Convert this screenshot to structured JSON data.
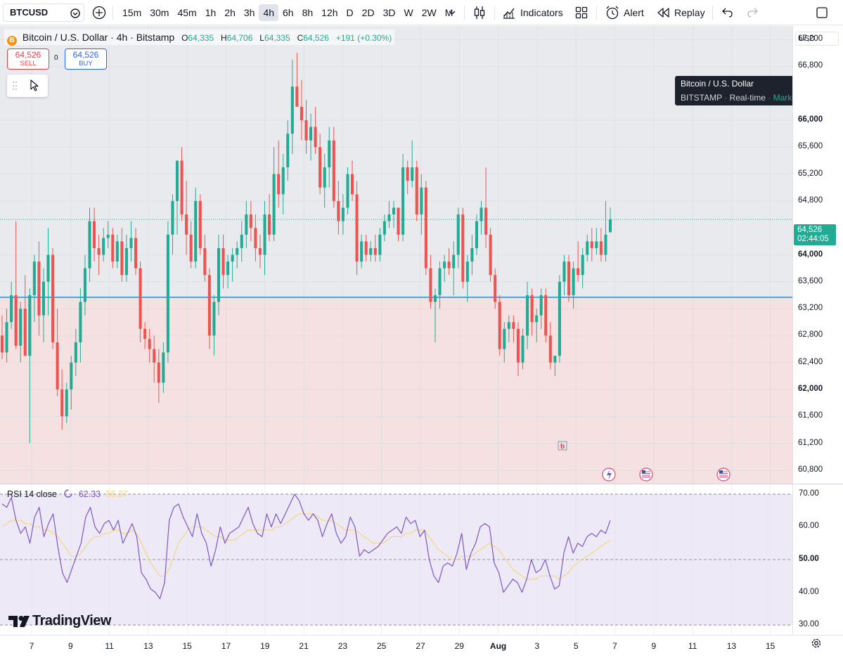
{
  "toolbar": {
    "symbol": "BTCUSD",
    "intervals": [
      "15m",
      "30m",
      "45m",
      "1h",
      "2h",
      "3h",
      "4h",
      "6h",
      "8h",
      "12h",
      "D",
      "2D",
      "3D",
      "W",
      "2W",
      "M"
    ],
    "active_interval": "4h",
    "indicators_label": "Indicators",
    "alert_label": "Alert",
    "replay_label": "Replay",
    "icons": [
      "add-symbol-icon",
      "interval-dropdown-icon",
      "chart-type-icon",
      "indicators-icon",
      "layouts-icon",
      "alert-icon",
      "replay-icon",
      "undo-icon",
      "redo-icon"
    ]
  },
  "legend": {
    "title": "Bitcoin / U.S. Dollar · 4h · Bitstamp",
    "coin_glyph": "B",
    "o_key": "O",
    "o_val": "64,335",
    "h_key": "H",
    "h_val": "64,706",
    "l_key": "L",
    "l_val": "64,335",
    "c_key": "C",
    "c_val": "64,526",
    "change": "+191 (+0.30%)"
  },
  "trade": {
    "sell_price": "64,526",
    "sell_label": "SELL",
    "spread": "0",
    "buy_price": "64,526",
    "buy_label": "BUY"
  },
  "tooltip": {
    "title": "Bitcoin / U.S. Dollar",
    "exchange": "BITSTAMP",
    "mode": "Real-time",
    "status": "Market open"
  },
  "price_scale": {
    "currency": "USD",
    "ticks": [
      "67,200",
      "66,800",
      "66,000",
      "65,600",
      "65,200",
      "64,800",
      "64,000",
      "63,600",
      "63,200",
      "62,800",
      "62,400",
      "62,000",
      "61,600",
      "61,200",
      "60,800"
    ],
    "bold_ticks": [
      "66,000",
      "64,000",
      "62,000"
    ],
    "last_price": "64,526",
    "countdown": "02:44:05"
  },
  "rsi": {
    "label": "RSI 14 close",
    "value": "62.33",
    "ma_value": "56.37",
    "ticks": [
      "70.00",
      "60.00",
      "50.00",
      "40.00",
      "30.00"
    ],
    "bold_ticks": [
      "50.00"
    ]
  },
  "time_axis": {
    "labels": [
      "7",
      "9",
      "11",
      "13",
      "15",
      "17",
      "19",
      "21",
      "23",
      "25",
      "27",
      "29",
      "Aug",
      "3",
      "5",
      "7",
      "9",
      "11",
      "13",
      "15"
    ]
  },
  "markers": {
    "event_label": "b"
  },
  "watermark": "TradingView",
  "colors": {
    "up": "#22ab94",
    "down": "#ef5350",
    "rsi_line": "#7e57c2",
    "rsi_ma": "#f5d682",
    "hline": "#2a9bc4",
    "upper_zone": "#e9eaee",
    "lower_zone": "#f5e1e1",
    "rsi_band": "#ede9f7"
  },
  "chart_data": {
    "type": "candlestick",
    "timeframe": "4h",
    "ylim": [
      60600,
      67400
    ],
    "horizontal_line": 63370,
    "candles_ohlc": [
      [
        62800,
        63100,
        62450,
        62550
      ],
      [
        62550,
        63200,
        62400,
        63000
      ],
      [
        63000,
        63600,
        62900,
        63400
      ],
      [
        63400,
        64500,
        62600,
        62650
      ],
      [
        62650,
        63300,
        62400,
        63200
      ],
      [
        63200,
        63700,
        62700,
        62500
      ],
      [
        62500,
        63500,
        61200,
        63400
      ],
      [
        63400,
        64000,
        63000,
        63900
      ],
      [
        63900,
        64200,
        62800,
        63100
      ],
      [
        63100,
        63800,
        62700,
        63600
      ],
      [
        63600,
        64400,
        63100,
        64000
      ],
      [
        64000,
        64100,
        62600,
        62700
      ],
      [
        62700,
        63200,
        61900,
        62000
      ],
      [
        62000,
        62300,
        61400,
        61600
      ],
      [
        61600,
        62100,
        61500,
        62000
      ],
      [
        62000,
        62500,
        61700,
        62400
      ],
      [
        62400,
        62900,
        62200,
        62700
      ],
      [
        62700,
        63500,
        62400,
        63300
      ],
      [
        63300,
        64000,
        63100,
        63800
      ],
      [
        63800,
        64700,
        63600,
        64500
      ],
      [
        64500,
        64700,
        63900,
        64100
      ],
      [
        64100,
        64300,
        63700,
        64000
      ],
      [
        64000,
        64400,
        63900,
        64250
      ],
      [
        64250,
        64500,
        64100,
        64300
      ],
      [
        64300,
        64400,
        63800,
        63900
      ],
      [
        63900,
        64300,
        63800,
        64200
      ],
      [
        64200,
        64400,
        63600,
        63700
      ],
      [
        63700,
        64300,
        63600,
        64100
      ],
      [
        64100,
        64500,
        63900,
        64250
      ],
      [
        64250,
        64400,
        63700,
        63800
      ],
      [
        63800,
        63900,
        62700,
        62900
      ],
      [
        62900,
        63000,
        62600,
        62750
      ],
      [
        62750,
        62900,
        62400,
        62600
      ],
      [
        62600,
        62800,
        62100,
        62400
      ],
      [
        62400,
        62600,
        61800,
        62100
      ],
      [
        62100,
        62700,
        61950,
        62550
      ],
      [
        62550,
        64500,
        62400,
        64300
      ],
      [
        64300,
        64900,
        64000,
        64800
      ],
      [
        64800,
        65300,
        64300,
        65400
      ],
      [
        65400,
        65600,
        64500,
        64600
      ],
      [
        64600,
        65100,
        64000,
        64300
      ],
      [
        64300,
        64500,
        63800,
        63900
      ],
      [
        63900,
        65000,
        63800,
        64800
      ],
      [
        64800,
        64900,
        64000,
        64100
      ],
      [
        64100,
        64300,
        63600,
        63700
      ],
      [
        63700,
        63800,
        62600,
        62800
      ],
      [
        62800,
        63400,
        62500,
        63300
      ],
      [
        63300,
        64300,
        63100,
        64100
      ],
      [
        64100,
        64300,
        63500,
        63700
      ],
      [
        63700,
        64000,
        63500,
        63900
      ],
      [
        63900,
        64100,
        63600,
        64000
      ],
      [
        64000,
        64200,
        63800,
        64100
      ],
      [
        64100,
        64500,
        63900,
        64300
      ],
      [
        64300,
        64800,
        64100,
        64600
      ],
      [
        64600,
        64800,
        64200,
        64400
      ],
      [
        64400,
        64600,
        63900,
        64100
      ],
      [
        64100,
        64300,
        63800,
        64000
      ],
      [
        64000,
        64800,
        63700,
        64600
      ],
      [
        64600,
        64900,
        64200,
        64300
      ],
      [
        64300,
        65600,
        64200,
        65200
      ],
      [
        65200,
        65700,
        64700,
        64900
      ],
      [
        64900,
        65500,
        64600,
        65300
      ],
      [
        65300,
        66000,
        65100,
        65800
      ],
      [
        65800,
        66900,
        65500,
        66500
      ],
      [
        66500,
        67000,
        66200,
        66200
      ],
      [
        66200,
        66600,
        65700,
        66000
      ],
      [
        66000,
        66300,
        65500,
        65700
      ],
      [
        65700,
        66100,
        65400,
        65900
      ],
      [
        65900,
        66200,
        65500,
        65600
      ],
      [
        65600,
        65800,
        64900,
        65000
      ],
      [
        65000,
        65500,
        64700,
        65300
      ],
      [
        65300,
        65900,
        65000,
        65700
      ],
      [
        65700,
        65900,
        64700,
        64800
      ],
      [
        64800,
        65100,
        64300,
        64500
      ],
      [
        64500,
        64900,
        64300,
        64700
      ],
      [
        64700,
        65300,
        64600,
        65200
      ],
      [
        65200,
        65400,
        64800,
        64900
      ],
      [
        64900,
        65100,
        63700,
        63900
      ],
      [
        63900,
        64300,
        63800,
        64200
      ],
      [
        64200,
        64300,
        63900,
        64000
      ],
      [
        64000,
        64200,
        63900,
        64100
      ],
      [
        64100,
        64300,
        63900,
        64000
      ],
      [
        64000,
        64400,
        63900,
        64300
      ],
      [
        64300,
        64600,
        64200,
        64500
      ],
      [
        64500,
        64800,
        64400,
        64600
      ],
      [
        64600,
        64800,
        64400,
        64700
      ],
      [
        64700,
        64700,
        64200,
        64300
      ],
      [
        64300,
        65500,
        64200,
        65300
      ],
      [
        65300,
        65400,
        64900,
        65100
      ],
      [
        65100,
        65700,
        65000,
        65300
      ],
      [
        65300,
        65400,
        64500,
        64600
      ],
      [
        64600,
        65200,
        64300,
        65000
      ],
      [
        65000,
        65100,
        63700,
        63800
      ],
      [
        63800,
        64000,
        63200,
        63300
      ],
      [
        63300,
        63500,
        62700,
        63400
      ],
      [
        63400,
        63900,
        63200,
        63800
      ],
      [
        63800,
        64000,
        63600,
        63900
      ],
      [
        63900,
        64100,
        63700,
        63800
      ],
      [
        63800,
        64200,
        63400,
        64000
      ],
      [
        64000,
        64700,
        63800,
        64600
      ],
      [
        64600,
        64700,
        63500,
        63600
      ],
      [
        63600,
        64000,
        63300,
        63900
      ],
      [
        63900,
        64300,
        63700,
        64100
      ],
      [
        64100,
        64600,
        64000,
        64500
      ],
      [
        64500,
        64800,
        64300,
        64700
      ],
      [
        64700,
        65300,
        64100,
        64300
      ],
      [
        64300,
        64400,
        63600,
        63700
      ],
      [
        63700,
        63800,
        63200,
        63300
      ],
      [
        63300,
        63400,
        62500,
        62600
      ],
      [
        62600,
        63000,
        62400,
        62900
      ],
      [
        62900,
        63100,
        62700,
        63000
      ],
      [
        63000,
        63100,
        62700,
        62900
      ],
      [
        62900,
        63000,
        62200,
        62400
      ],
      [
        62400,
        62900,
        62300,
        62800
      ],
      [
        62800,
        63600,
        62600,
        63400
      ],
      [
        63400,
        63500,
        62800,
        63000
      ],
      [
        63000,
        63200,
        62700,
        63100
      ],
      [
        63100,
        63500,
        62900,
        63400
      ],
      [
        63400,
        63500,
        62700,
        62800
      ],
      [
        62800,
        63000,
        62300,
        62400
      ],
      [
        62400,
        62500,
        62200,
        62500
      ],
      [
        62500,
        63700,
        62400,
        63600
      ],
      [
        63600,
        64000,
        63400,
        63900
      ],
      [
        63900,
        64000,
        63300,
        63400
      ],
      [
        63400,
        63900,
        63200,
        63800
      ],
      [
        63800,
        64200,
        63600,
        63700
      ],
      [
        63700,
        64100,
        63500,
        64000
      ],
      [
        64000,
        64300,
        63900,
        64200
      ],
      [
        64200,
        64400,
        63900,
        64100
      ],
      [
        64100,
        64400,
        64000,
        64200
      ],
      [
        64200,
        64400,
        63900,
        64000
      ],
      [
        64000,
        64800,
        63900,
        64300
      ],
      [
        64335,
        64706,
        64335,
        64526
      ]
    ],
    "rsi_values": [
      67,
      66,
      69,
      62,
      58,
      60,
      55,
      63,
      66,
      57,
      61,
      64,
      54,
      46,
      43,
      47,
      51,
      55,
      63,
      66,
      60,
      58,
      61,
      62,
      59,
      62,
      55,
      58,
      61,
      57,
      46,
      44,
      41,
      40,
      38,
      43,
      62,
      66,
      67,
      63,
      60,
      57,
      64,
      58,
      55,
      48,
      53,
      60,
      55,
      58,
      59,
      60,
      63,
      66,
      61,
      58,
      57,
      64,
      60,
      64,
      61,
      64,
      67,
      70,
      68,
      64,
      62,
      64,
      62,
      57,
      61,
      64,
      58,
      55,
      57,
      63,
      60,
      51,
      53,
      52,
      53,
      54,
      56,
      58,
      59,
      60,
      58,
      63,
      61,
      62,
      57,
      59,
      50,
      45,
      43,
      48,
      49,
      48,
      52,
      58,
      47,
      52,
      55,
      60,
      61,
      60,
      49,
      46,
      40,
      42,
      44,
      43,
      40,
      44,
      50,
      46,
      47,
      50,
      45,
      41,
      42,
      52,
      57,
      52,
      55,
      54,
      57,
      58,
      57,
      59,
      58,
      62
    ],
    "rsi_ma_values": [
      60,
      61,
      62,
      62,
      62,
      61,
      61,
      60,
      60,
      59,
      59,
      58,
      57,
      55,
      53,
      51,
      51,
      52,
      54,
      56,
      57,
      57,
      58,
      58,
      59,
      59,
      58,
      58,
      59,
      58,
      55,
      52,
      49,
      47,
      45,
      45,
      47,
      51,
      55,
      57,
      59,
      60,
      60,
      60,
      59,
      58,
      57,
      57,
      56,
      56,
      56,
      57,
      58,
      59,
      59,
      59,
      59,
      59,
      59,
      60,
      60,
      61,
      62,
      63,
      64,
      64,
      64,
      64,
      63,
      62,
      62,
      62,
      61,
      60,
      59,
      59,
      59,
      58,
      57,
      56,
      55,
      55,
      55,
      56,
      57,
      57,
      57,
      58,
      58,
      59,
      59,
      59,
      57,
      55,
      53,
      52,
      51,
      50,
      50,
      51,
      51,
      51,
      52,
      53,
      54,
      55,
      54,
      53,
      51,
      49,
      47,
      46,
      45,
      44,
      44,
      44,
      45,
      45,
      45,
      45,
      44,
      45,
      46,
      48,
      49,
      50,
      51,
      52,
      53,
      54,
      55,
      56
    ]
  }
}
